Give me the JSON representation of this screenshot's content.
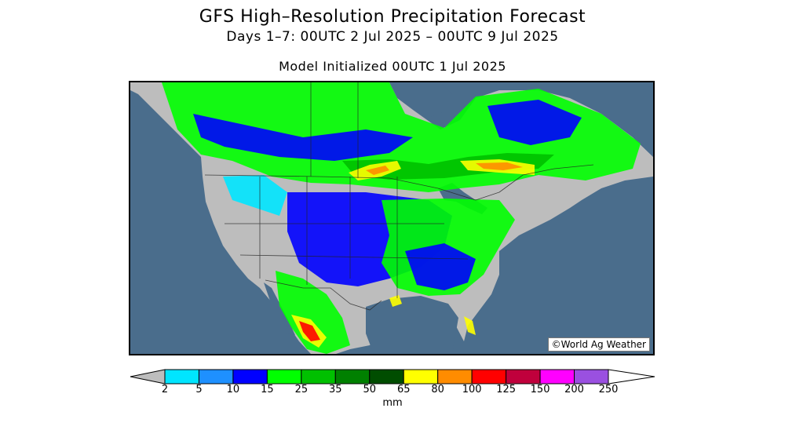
{
  "title": {
    "line1": "GFS High–Resolution Precipitation Forecast",
    "line2": "Days 1–7: 00UTC 2 Jul 2025 – 00UTC 9 Jul 2025",
    "line3": "Model Initialized 00UTC 1 Jul 2025"
  },
  "map": {
    "region": "North America",
    "ocean_color": "#4a6d8c",
    "land_dry_color": "#bdbdbd",
    "credit": "©World Ag Weather"
  },
  "legend": {
    "unit": "mm",
    "tick_labels": [
      "2",
      "5",
      "10",
      "15",
      "25",
      "35",
      "50",
      "65",
      "80",
      "100",
      "125",
      "150",
      "200",
      "250"
    ],
    "below_min_color": "#bdbdbd",
    "above_max_color": "#ffffff",
    "bin_colors": [
      "#00e5ff",
      "#1e90ff",
      "#0000ff",
      "#00ff00",
      "#00c000",
      "#008000",
      "#004d00",
      "#ffff00",
      "#ff8c00",
      "#ff0000",
      "#c0003c",
      "#ff00ff",
      "#9a50e0"
    ]
  }
}
